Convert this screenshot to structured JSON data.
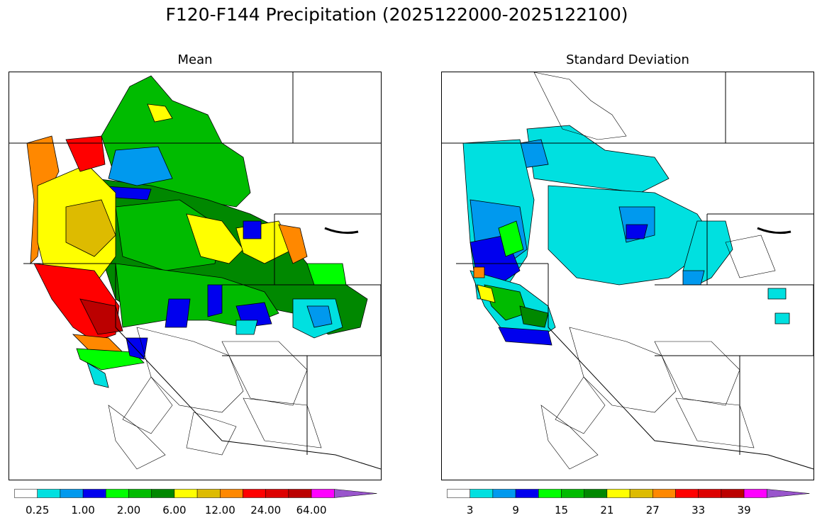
{
  "title": "F120-F144 Precipitation (2025122000-2025122100)",
  "panels": [
    {
      "title": "Mean",
      "colorbar": {
        "colors": [
          "#ffffff",
          "#00e0e0",
          "#0099ee",
          "#0000ee",
          "#00ff00",
          "#00bb00",
          "#008800",
          "#ffff00",
          "#ddbb00",
          "#ff8800",
          "#ff0000",
          "#dd0000",
          "#bb0000",
          "#ff00ff",
          "#9955cc"
        ],
        "tick_labels": [
          "0.25",
          "1.00",
          "2.00",
          "6.00",
          "12.00",
          "24.00",
          "64.00"
        ],
        "extend": "max"
      }
    },
    {
      "title": "Standard Deviation",
      "colorbar": {
        "colors": [
          "#ffffff",
          "#00e0e0",
          "#0099ee",
          "#0000ee",
          "#00ff00",
          "#00bb00",
          "#008800",
          "#ffff00",
          "#ddbb00",
          "#ff8800",
          "#ff0000",
          "#dd0000",
          "#bb0000",
          "#ff00ff",
          "#9955cc"
        ],
        "tick_labels": [
          "3",
          "9",
          "15",
          "21",
          "27",
          "33",
          "39"
        ],
        "extend": "max"
      }
    }
  ]
}
